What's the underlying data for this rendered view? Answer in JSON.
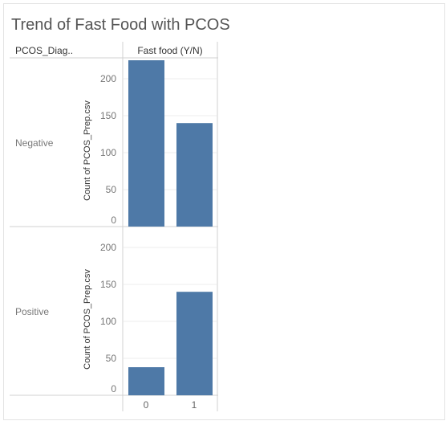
{
  "chart_data": {
    "type": "bar",
    "title": "Trend of Fast Food with PCOS",
    "row_header": "PCOS_Diag..",
    "column_header": "Fast food (Y/N)",
    "ylabel": "Count of PCOS_Prep.csv",
    "categories": [
      "0",
      "1"
    ],
    "yticks": [
      0,
      50,
      100,
      150,
      200
    ],
    "ylim": [
      0,
      225
    ],
    "bar_color": "#4e79a7",
    "panels": [
      {
        "row_label": "Negative",
        "values": [
          225,
          140
        ]
      },
      {
        "row_label": "Positive",
        "values": [
          38,
          140
        ]
      }
    ]
  }
}
